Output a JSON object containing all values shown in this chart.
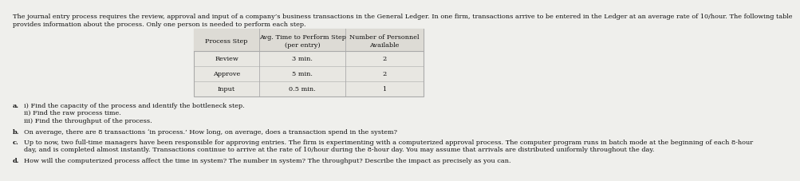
{
  "intro_line1": "The journal entry process requires the review, approval and input of a company’s business transactions in the General Ledger. In one firm, transactions arrive to be entered in the Ledger at an average rate of 10/hour. The following table",
  "intro_line2": "provides information about the process. Only one person is needed to perform each step.",
  "table_headers": [
    "Process Step",
    "Avg. Time to Perform Step\n(per entry)",
    "Number of Personnel\nAvailable"
  ],
  "table_rows": [
    [
      "Review",
      "3 min.",
      "2"
    ],
    [
      "Approve",
      "5 min.",
      "2"
    ],
    [
      "Input",
      "0.5 min.",
      "1"
    ]
  ],
  "q_a_label": "a.",
  "q_a_i": "i) Find the capacity of the process and identify the bottleneck step.",
  "q_a_ii": "ii) Find the raw process time.",
  "q_a_iii": "iii) Find the throughput of the process.",
  "q_b_label": "b.",
  "q_b_text": "On average, there are 8 transactions ‘in process.’ How long, on average, does a transaction spend in the system?",
  "q_c_label": "c.",
  "q_c_text": "Up to now, two full-time managers have been responsible for approving entries. The firm is experimenting with a computerized approval process. The computer program runs in batch mode at the beginning of each 8-hour day, and is completed almost instantly. Transactions continue to arrive at the rate of 10/hour during the 8-hour day. You may assume that arrivals are distributed uniformly throughout the day.",
  "q_d_label": "d.",
  "q_d_text": "How will the computerized process affect the time in system? The number in system? The throughput? Describe the impact as precisely as you can.",
  "bg_color": "#efefec",
  "table_fill": "#e8e7e2",
  "border_color": "#aaaaaa",
  "text_color": "#111111",
  "fs": 5.9
}
